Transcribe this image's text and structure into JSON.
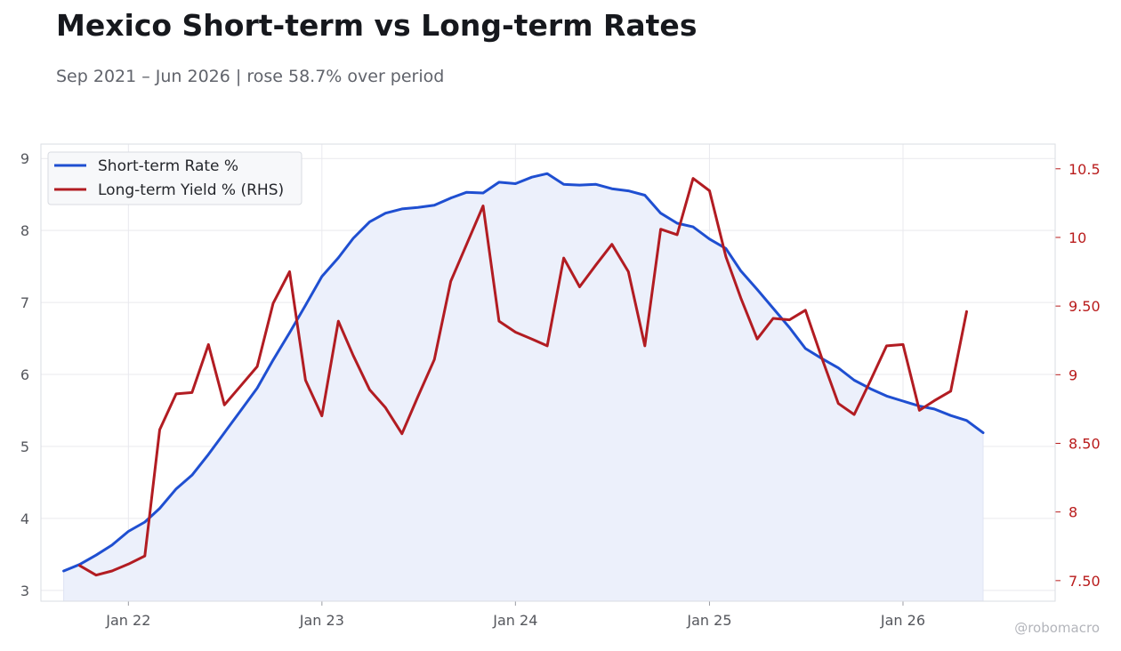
{
  "title": "Mexico Short-term vs Long-term Rates",
  "subtitle": "Sep 2021 – Jun 2026 | rose 58.7% over period",
  "watermark": "@robomacro",
  "colors": {
    "short": "#1f4fd1",
    "short_fill": "#ecf0fb",
    "long": "#b21c22",
    "axis_left": "#55575d",
    "axis_right": "#b91c1c",
    "grid": "#e9e9ee",
    "frame": "#dadde3"
  },
  "chart_data": {
    "type": "line",
    "grid": true,
    "legend_position": "top-left",
    "legend": [
      {
        "name": "Short-term Rate %",
        "color": "#1f4fd1"
      },
      {
        "name": "Long-term Yield % (RHS)",
        "color": "#b21c22"
      }
    ],
    "x_axis": {
      "type": "date",
      "range": [
        "2021-07-20",
        "2026-10-15"
      ],
      "ticks": [
        {
          "date": "2022-01-01",
          "label": "Jan 22"
        },
        {
          "date": "2023-01-01",
          "label": "Jan 23"
        },
        {
          "date": "2024-01-01",
          "label": "Jan 24"
        },
        {
          "date": "2025-01-01",
          "label": "Jan 25"
        },
        {
          "date": "2026-01-01",
          "label": "Jan 26"
        }
      ]
    },
    "y_axis_left": {
      "range": [
        2.85,
        9.2
      ],
      "ticks": [
        {
          "value": 3,
          "label": "3"
        },
        {
          "value": 4,
          "label": "4"
        },
        {
          "value": 5,
          "label": "5"
        },
        {
          "value": 6,
          "label": "6"
        },
        {
          "value": 7,
          "label": "7"
        },
        {
          "value": 8,
          "label": "8"
        },
        {
          "value": 9,
          "label": "9"
        }
      ]
    },
    "y_axis_right": {
      "range": [
        7.35,
        10.68
      ],
      "ticks": [
        {
          "value": 7.5,
          "label": "7.50"
        },
        {
          "value": 8,
          "label": "8"
        },
        {
          "value": 8.5,
          "label": "8.50"
        },
        {
          "value": 9,
          "label": "9"
        },
        {
          "value": 9.5,
          "label": "9.50"
        },
        {
          "value": 10,
          "label": "10"
        },
        {
          "value": 10.5,
          "label": "10.5"
        }
      ]
    },
    "series": [
      {
        "name": "Short-term Rate %",
        "axis": "left",
        "area": true,
        "points": [
          [
            "2021-09-01",
            3.27
          ],
          [
            "2021-10-01",
            3.36
          ],
          [
            "2021-11-01",
            3.49
          ],
          [
            "2021-12-01",
            3.63
          ],
          [
            "2022-01-01",
            3.82
          ],
          [
            "2022-02-01",
            3.95
          ],
          [
            "2022-03-01",
            4.14
          ],
          [
            "2022-04-01",
            4.41
          ],
          [
            "2022-05-01",
            4.6
          ],
          [
            "2022-06-01",
            4.89
          ],
          [
            "2022-07-01",
            5.19
          ],
          [
            "2022-08-01",
            5.5
          ],
          [
            "2022-09-01",
            5.81
          ],
          [
            "2022-10-01",
            6.2
          ],
          [
            "2022-11-01",
            6.58
          ],
          [
            "2022-12-01",
            6.96
          ],
          [
            "2023-01-01",
            7.36
          ],
          [
            "2023-02-01",
            7.62
          ],
          [
            "2023-03-01",
            7.89
          ],
          [
            "2023-04-01",
            8.12
          ],
          [
            "2023-05-01",
            8.24
          ],
          [
            "2023-06-01",
            8.3
          ],
          [
            "2023-07-01",
            8.32
          ],
          [
            "2023-08-01",
            8.35
          ],
          [
            "2023-09-01",
            8.45
          ],
          [
            "2023-10-01",
            8.53
          ],
          [
            "2023-11-01",
            8.52
          ],
          [
            "2023-12-01",
            8.67
          ],
          [
            "2024-01-01",
            8.65
          ],
          [
            "2024-02-01",
            8.74
          ],
          [
            "2024-03-01",
            8.79
          ],
          [
            "2024-04-01",
            8.64
          ],
          [
            "2024-05-01",
            8.63
          ],
          [
            "2024-06-01",
            8.64
          ],
          [
            "2024-07-01",
            8.58
          ],
          [
            "2024-08-01",
            8.55
          ],
          [
            "2024-09-01",
            8.49
          ],
          [
            "2024-10-01",
            8.24
          ],
          [
            "2024-11-01",
            8.1
          ],
          [
            "2024-12-01",
            8.05
          ],
          [
            "2025-01-01",
            7.88
          ],
          [
            "2025-02-01",
            7.75
          ],
          [
            "2025-03-01",
            7.44
          ],
          [
            "2025-04-01",
            7.18
          ],
          [
            "2025-05-01",
            6.92
          ],
          [
            "2025-06-01",
            6.65
          ],
          [
            "2025-07-01",
            6.36
          ],
          [
            "2025-08-01",
            6.22
          ],
          [
            "2025-09-01",
            6.09
          ],
          [
            "2025-10-01",
            5.92
          ],
          [
            "2025-11-01",
            5.8
          ],
          [
            "2025-12-01",
            5.7
          ],
          [
            "2026-01-01",
            5.63
          ],
          [
            "2026-02-01",
            5.56
          ],
          [
            "2026-03-01",
            5.52
          ],
          [
            "2026-04-01",
            5.43
          ],
          [
            "2026-05-01",
            5.36
          ],
          [
            "2026-06-01",
            5.19
          ]
        ]
      },
      {
        "name": "Long-term Yield % (RHS)",
        "axis": "right",
        "area": false,
        "points": [
          [
            "2021-10-01",
            7.61
          ],
          [
            "2021-11-01",
            7.54
          ],
          [
            "2021-12-01",
            7.57
          ],
          [
            "2022-01-01",
            7.62
          ],
          [
            "2022-02-01",
            7.68
          ],
          [
            "2022-03-01",
            8.6
          ],
          [
            "2022-04-01",
            8.86
          ],
          [
            "2022-05-01",
            8.87
          ],
          [
            "2022-06-01",
            9.22
          ],
          [
            "2022-07-01",
            8.78
          ],
          [
            "2022-08-01",
            8.92
          ],
          [
            "2022-09-01",
            9.06
          ],
          [
            "2022-10-01",
            9.52
          ],
          [
            "2022-11-01",
            9.75
          ],
          [
            "2022-12-01",
            8.96
          ],
          [
            "2023-01-01",
            8.7
          ],
          [
            "2023-02-01",
            9.39
          ],
          [
            "2023-03-01",
            9.14
          ],
          [
            "2023-04-01",
            8.89
          ],
          [
            "2023-05-01",
            8.76
          ],
          [
            "2023-06-01",
            8.57
          ],
          [
            "2023-07-01",
            8.84
          ],
          [
            "2023-08-01",
            9.11
          ],
          [
            "2023-09-01",
            9.68
          ],
          [
            "2023-10-01",
            9.95
          ],
          [
            "2023-11-01",
            10.23
          ],
          [
            "2023-12-01",
            9.39
          ],
          [
            "2024-01-01",
            9.31
          ],
          [
            "2024-02-01",
            9.26
          ],
          [
            "2024-03-01",
            9.21
          ],
          [
            "2024-04-01",
            9.85
          ],
          [
            "2024-05-01",
            9.64
          ],
          [
            "2024-06-01",
            9.8
          ],
          [
            "2024-07-01",
            9.95
          ],
          [
            "2024-08-01",
            9.75
          ],
          [
            "2024-09-01",
            9.21
          ],
          [
            "2024-10-01",
            10.06
          ],
          [
            "2024-11-01",
            10.02
          ],
          [
            "2024-12-01",
            10.43
          ],
          [
            "2025-01-01",
            10.34
          ],
          [
            "2025-02-01",
            9.86
          ],
          [
            "2025-03-01",
            9.56
          ],
          [
            "2025-04-01",
            9.26
          ],
          [
            "2025-05-01",
            9.41
          ],
          [
            "2025-06-01",
            9.4
          ],
          [
            "2025-07-01",
            9.47
          ],
          [
            "2025-08-01",
            9.12
          ],
          [
            "2025-09-01",
            8.79
          ],
          [
            "2025-10-01",
            8.71
          ],
          [
            "2025-11-01",
            8.96
          ],
          [
            "2025-12-01",
            9.21
          ],
          [
            "2026-01-01",
            9.22
          ],
          [
            "2026-02-01",
            8.74
          ],
          [
            "2026-03-01",
            8.81
          ],
          [
            "2026-04-01",
            8.88
          ],
          [
            "2026-05-01",
            9.46
          ]
        ]
      }
    ]
  }
}
